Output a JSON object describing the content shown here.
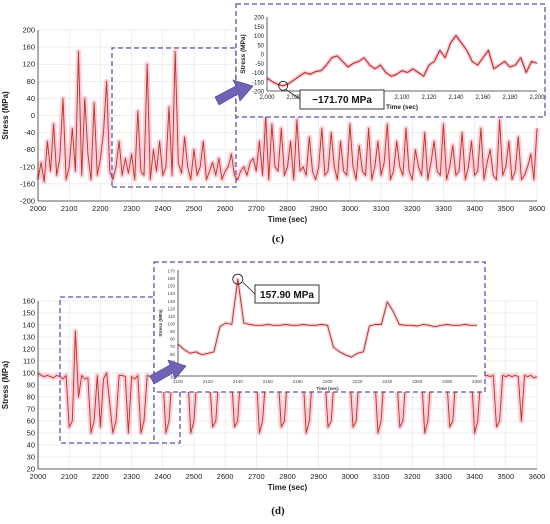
{
  "chart_data": [
    {
      "id": "c-main",
      "type": "line",
      "panel_label": "(c)",
      "xlabel": "Time (sec)",
      "ylabel": "Stress (MPa)",
      "xlim": [
        2000,
        3600
      ],
      "ylim": [
        -200,
        200
      ],
      "xticks": [
        2000,
        2100,
        2200,
        2300,
        2400,
        2500,
        2600,
        2700,
        2800,
        2900,
        3000,
        3100,
        3200,
        3300,
        3400,
        3500,
        3600
      ],
      "yticks": [
        -200,
        -160,
        -120,
        -80,
        -40,
        0,
        40,
        80,
        120,
        160,
        200
      ],
      "grid": true,
      "line_color": "#e0201e",
      "band_color": "#f4a6c0",
      "series": [
        {
          "x": [
            2000,
            2010,
            2020,
            2030,
            2040,
            2050,
            2060,
            2070,
            2080,
            2090,
            2100,
            2110,
            2120,
            2130,
            2140,
            2150,
            2160,
            2170,
            2180,
            2190,
            2200,
            2210,
            2220,
            2230,
            2240,
            2250,
            2260,
            2270,
            2280,
            2290,
            2300,
            2310,
            2320,
            2330,
            2340,
            2350,
            2360,
            2370,
            2380,
            2390,
            2400,
            2410,
            2420,
            2430,
            2440,
            2450,
            2460,
            2470,
            2480,
            2490,
            2500,
            2510,
            2520,
            2530,
            2540,
            2550,
            2560,
            2570,
            2580,
            2590,
            2600,
            2610,
            2620,
            2630,
            2640,
            2650,
            2660,
            2670,
            2680,
            2690,
            2700,
            2710,
            2720,
            2730,
            2740,
            2750,
            2760,
            2770,
            2780,
            2790,
            2800,
            2810,
            2820,
            2830,
            2840,
            2850,
            2860,
            2870,
            2880,
            2890,
            2900,
            2910,
            2920,
            2930,
            2940,
            2950,
            2960,
            2970,
            2980,
            2990,
            3000,
            3010,
            3020,
            3030,
            3040,
            3050,
            3060,
            3070,
            3080,
            3090,
            3100,
            3110,
            3120,
            3130,
            3140,
            3150,
            3160,
            3170,
            3180,
            3190,
            3200,
            3210,
            3220,
            3230,
            3240,
            3250,
            3260,
            3270,
            3280,
            3290,
            3300,
            3310,
            3320,
            3330,
            3340,
            3350,
            3360,
            3370,
            3380,
            3390,
            3400,
            3410,
            3420,
            3430,
            3440,
            3450,
            3460,
            3470,
            3480,
            3490,
            3500,
            3510,
            3520,
            3530,
            3540,
            3550,
            3560,
            3570,
            3580,
            3590,
            3600
          ],
          "y": [
            -150,
            -110,
            -155,
            -60,
            -130,
            -20,
            -140,
            -100,
            40,
            -150,
            -120,
            -30,
            -130,
            150,
            -140,
            40,
            -90,
            -150,
            30,
            -140,
            -100,
            -40,
            80,
            -130,
            -150,
            -120,
            -60,
            -140,
            -100,
            -135,
            -90,
            -150,
            10,
            -130,
            -140,
            120,
            -150,
            -80,
            -130,
            -60,
            -140,
            -120,
            20,
            -140,
            150,
            -110,
            -135,
            -50,
            -120,
            -150,
            -80,
            -140,
            -120,
            -60,
            -150,
            -130,
            -110,
            -140,
            -100,
            -150,
            -130,
            -120,
            -90,
            -140,
            -150,
            -130,
            -120,
            -140,
            -110,
            -100,
            -130,
            -60,
            -140,
            0,
            -150,
            -20,
            -120,
            -130,
            -30,
            -140,
            -120,
            -60,
            -150,
            -10,
            -130,
            -120,
            -140,
            -50,
            -130,
            -150,
            -120,
            -30,
            -140,
            -130,
            -40,
            -120,
            -150,
            -60,
            -130,
            -140,
            -20,
            -120,
            -150,
            -70,
            -130,
            -140,
            -30,
            -150,
            -120,
            -60,
            -140,
            -110,
            -20,
            -150,
            -130,
            -60,
            -120,
            -140,
            -30,
            -130,
            -150,
            -80,
            -120,
            -140,
            -40,
            -150,
            -110,
            -60,
            -130,
            -140,
            -20,
            -150,
            -120,
            -70,
            -140,
            -130,
            -40,
            -150,
            -120,
            -60,
            -140,
            -130,
            -30,
            -150,
            -110,
            -80,
            -140,
            -150,
            -10,
            -140,
            -120,
            -60,
            -150,
            -130,
            -50,
            -150,
            -140,
            -120,
            -90,
            -150,
            -30
          ]
        }
      ]
    },
    {
      "id": "c-inset",
      "type": "line",
      "xlabel": "Time (sec)",
      "ylabel": "Stress (MPa)",
      "xlim": [
        2000,
        2200
      ],
      "ylim": [
        -200,
        200
      ],
      "xticks": [
        "2,000",
        "2,020",
        "2,040",
        "2,060",
        "2,080",
        "2,100",
        "2,120",
        "2,140",
        "2,160",
        "2,180",
        "2,200"
      ],
      "yticks": [
        -200,
        -150,
        -100,
        -50,
        0,
        50,
        100,
        150,
        200
      ],
      "annotation": "−171.70 MPa",
      "annotation_point": [
        2012,
        -171.7
      ],
      "series": [
        {
          "x": [
            2000,
            2004,
            2008,
            2012,
            2016,
            2020,
            2024,
            2028,
            2032,
            2036,
            2040,
            2044,
            2048,
            2052,
            2056,
            2060,
            2064,
            2068,
            2072,
            2076,
            2080,
            2084,
            2088,
            2092,
            2096,
            2100,
            2104,
            2108,
            2112,
            2116,
            2120,
            2124,
            2128,
            2132,
            2136,
            2140,
            2144,
            2148,
            2152,
            2156,
            2160,
            2164,
            2168,
            2172,
            2176,
            2180,
            2184,
            2188,
            2192,
            2196,
            2200
          ],
          "y": [
            -130,
            -150,
            -165,
            -171.7,
            -160,
            -140,
            -120,
            -100,
            -110,
            -95,
            -90,
            -60,
            -20,
            -10,
            -40,
            -70,
            -50,
            -40,
            -20,
            -60,
            -80,
            -60,
            -100,
            -120,
            -110,
            -90,
            -100,
            -80,
            -100,
            -120,
            -60,
            -40,
            20,
            -20,
            60,
            100,
            60,
            20,
            -40,
            -60,
            -20,
            20,
            -80,
            -60,
            -40,
            -70,
            -60,
            -20,
            -100,
            -40,
            -50
          ]
        }
      ]
    },
    {
      "id": "d-main",
      "type": "line",
      "panel_label": "(d)",
      "xlabel": "Time (sec)",
      "ylabel": "Stress (MPa)",
      "xlim": [
        2000,
        3600
      ],
      "ylim": [
        20,
        160
      ],
      "xticks": [
        2000,
        2100,
        2200,
        2300,
        2400,
        2500,
        2600,
        2700,
        2800,
        2900,
        3000,
        3100,
        3200,
        3300,
        3400,
        3500,
        3600
      ],
      "yticks": [
        20,
        30,
        40,
        50,
        60,
        70,
        80,
        90,
        100,
        110,
        120,
        130,
        140,
        150,
        160
      ],
      "grid": true,
      "line_color": "#e0201e",
      "band_color": "#f4a6c0",
      "series": [
        {
          "x": [
            2000,
            2010,
            2020,
            2030,
            2040,
            2050,
            2060,
            2070,
            2080,
            2090,
            2100,
            2110,
            2120,
            2130,
            2140,
            2150,
            2160,
            2170,
            2180,
            2190,
            2200,
            2210,
            2220,
            2230,
            2240,
            2250,
            2260,
            2270,
            2280,
            2290,
            2300,
            2310,
            2320,
            2330,
            2340,
            2350,
            2360,
            2370,
            2380,
            2390,
            2400,
            2410,
            2420,
            2430,
            2440,
            2450,
            2460,
            2470,
            2480,
            2490,
            2500,
            2510,
            2520,
            2530,
            2540,
            2550,
            2560,
            2570,
            2580,
            2590,
            2600,
            2610,
            2620,
            2630,
            2640,
            2650,
            2660,
            2670,
            2680,
            2690,
            2700,
            2710,
            2720,
            2730,
            2740,
            2750,
            2760,
            2770,
            2780,
            2790,
            2800,
            2810,
            2820,
            2830,
            2840,
            2850,
            2860,
            2870,
            2880,
            2890,
            2900,
            2910,
            2920,
            2930,
            2940,
            2950,
            2960,
            2970,
            2980,
            2990,
            3000,
            3010,
            3020,
            3030,
            3040,
            3050,
            3060,
            3070,
            3080,
            3090,
            3100,
            3110,
            3120,
            3130,
            3140,
            3150,
            3160,
            3170,
            3180,
            3190,
            3200,
            3210,
            3220,
            3230,
            3240,
            3250,
            3260,
            3270,
            3280,
            3290,
            3300,
            3310,
            3320,
            3330,
            3340,
            3350,
            3360,
            3370,
            3380,
            3390,
            3400,
            3410,
            3420,
            3430,
            3440,
            3450,
            3460,
            3470,
            3480,
            3490,
            3500,
            3510,
            3520,
            3530,
            3540,
            3550,
            3560,
            3570,
            3580,
            3590,
            3600
          ],
          "y": [
            100,
            98,
            97,
            98,
            97,
            96,
            98,
            97,
            95,
            98,
            55,
            60,
            135,
            80,
            98,
            95,
            96,
            50,
            60,
            98,
            55,
            95,
            100,
            75,
            50,
            60,
            98,
            98,
            97,
            50,
            97,
            95,
            98,
            50,
            60,
            98,
            97,
            98,
            97,
            96,
            98,
            50,
            60,
            98,
            97,
            98,
            97,
            96,
            98,
            50,
            60,
            98,
            97,
            97,
            98,
            96,
            55,
            60,
            98,
            97,
            98,
            97,
            98,
            55,
            60,
            98,
            97,
            98,
            97,
            96,
            98,
            50,
            60,
            97,
            98,
            98,
            96,
            97,
            55,
            60,
            98,
            97,
            98,
            97,
            98,
            97,
            50,
            60,
            98,
            97,
            98,
            98,
            97,
            55,
            60,
            98,
            97,
            96,
            98,
            97,
            98,
            55,
            60,
            98,
            97,
            98,
            97,
            98,
            97,
            50,
            60,
            98,
            97,
            98,
            98,
            97,
            55,
            60,
            98,
            97,
            98,
            97,
            96,
            98,
            50,
            60,
            98,
            97,
            98,
            97,
            98,
            97,
            55,
            60,
            98,
            97,
            98,
            97,
            98,
            97,
            50,
            60,
            98,
            97,
            98,
            97,
            98,
            55,
            60,
            98,
            97,
            98,
            97,
            98,
            97,
            60,
            98,
            97,
            98,
            96,
            97
          ]
        }
      ]
    },
    {
      "id": "d-inset",
      "type": "line",
      "xlabel": "Time (sec)",
      "ylabel": "Stress (MPa)",
      "xlim": [
        2100,
        2300
      ],
      "ylim": [
        30,
        170
      ],
      "xticks": [
        2100,
        2120,
        2140,
        2160,
        2180,
        2200,
        2220,
        2240,
        2260,
        2280,
        2300
      ],
      "yticks": [
        30,
        40,
        50,
        60,
        70,
        80,
        90,
        100,
        110,
        120,
        130,
        140,
        150,
        160,
        170
      ],
      "annotation": "157.90 MPa",
      "annotation_point": [
        2140,
        157.9
      ],
      "series": [
        {
          "x": [
            2100,
            2104,
            2108,
            2112,
            2116,
            2120,
            2124,
            2128,
            2132,
            2136,
            2140,
            2144,
            2148,
            2152,
            2156,
            2160,
            2164,
            2168,
            2172,
            2176,
            2180,
            2184,
            2188,
            2192,
            2196,
            2200,
            2204,
            2208,
            2212,
            2216,
            2220,
            2224,
            2228,
            2232,
            2236,
            2240,
            2244,
            2248,
            2252,
            2256,
            2260,
            2264,
            2268,
            2272,
            2276,
            2280,
            2284,
            2288,
            2292,
            2296,
            2300
          ],
          "y": [
            72,
            65,
            60,
            62,
            58,
            60,
            62,
            95,
            100,
            98,
            157.9,
            100,
            98,
            97,
            97,
            98,
            97,
            97,
            98,
            97,
            97,
            98,
            97,
            97,
            98,
            97,
            68,
            62,
            58,
            55,
            60,
            62,
            96,
            98,
            98,
            128,
            115,
            98,
            97,
            97,
            96,
            98,
            97,
            95,
            97,
            98,
            97,
            97,
            98,
            97,
            97
          ]
        }
      ]
    }
  ]
}
